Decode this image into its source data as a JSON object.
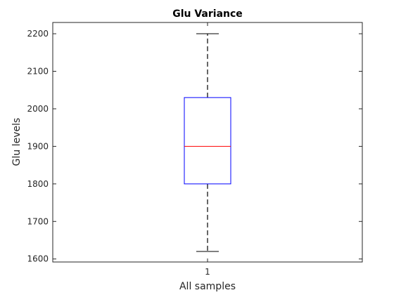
{
  "chart_data": {
    "type": "box",
    "title": "Glu Variance",
    "xlabel": "All samples",
    "ylabel": "Glu levels",
    "categories": [
      "1"
    ],
    "y_ticks": [
      1600,
      1700,
      1800,
      1900,
      2000,
      2100,
      2200
    ],
    "y_tick_labels": [
      "1600",
      "1700",
      "1800",
      "1900",
      "2000",
      "2100",
      "2200"
    ],
    "ylim": [
      1592,
      2230
    ],
    "xlim": [
      0.5,
      1.5
    ],
    "boxes": [
      {
        "category": "1",
        "whisker_low": 1620,
        "q1": 1800,
        "median": 1900,
        "q3": 2030,
        "whisker_high": 2200
      }
    ],
    "grid": false,
    "colors": {
      "box": "#0000ff",
      "median": "#ff0000",
      "whisker": "#000000",
      "axes": "#262626"
    }
  }
}
